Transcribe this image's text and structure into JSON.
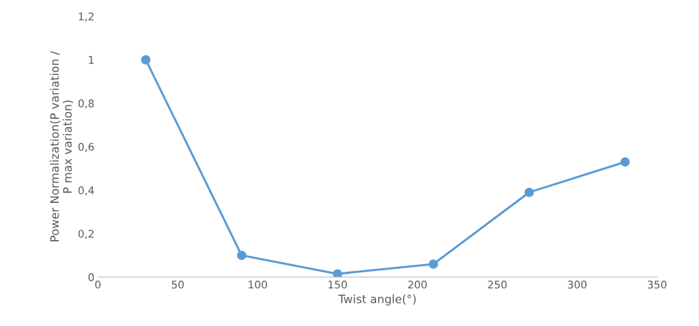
{
  "chart_data": {
    "type": "line",
    "xlabel": "Twist angle(°)",
    "ylabel": "Power Normalization(P variation /\nP max variation)",
    "x": [
      30,
      90,
      150,
      210,
      270,
      330
    ],
    "series": [
      {
        "color": "#5b9bd5",
        "values": [
          1.0,
          0.1,
          0.015,
          0.06,
          0.39,
          0.53
        ]
      }
    ],
    "xlim": [
      0,
      350
    ],
    "xticks": [
      0,
      50,
      100,
      150,
      200,
      250,
      300,
      350
    ],
    "ylim": [
      0,
      1.2
    ],
    "yticks": [
      0,
      {
        "value": 0.2,
        "label": "0,2"
      },
      {
        "value": 0.4,
        "label": "0,4"
      },
      {
        "value": 0.6,
        "label": "0,6"
      },
      {
        "value": 0.8,
        "label": "0,8"
      },
      1,
      {
        "value": 1.2,
        "label": "1,2"
      }
    ],
    "grid": false,
    "marker": "circle",
    "line_style": "solid"
  }
}
